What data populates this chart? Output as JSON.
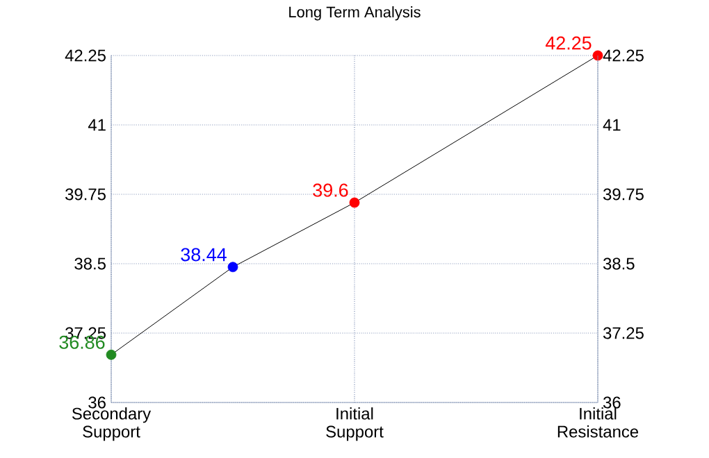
{
  "chart_data": {
    "type": "line",
    "title": "Long Term Analysis",
    "categories": [
      "Secondary Support",
      null,
      "Initial Support",
      null,
      "Initial Resistance"
    ],
    "ylim": [
      36,
      42.25
    ],
    "yticks": [
      36,
      37.25,
      38.5,
      39.75,
      41,
      42.25
    ],
    "y2lim": [
      36,
      42.25
    ],
    "y2ticks": [
      36,
      37.25,
      38.5,
      39.75,
      41,
      42.25
    ],
    "grid": true,
    "marker": "circle",
    "data_labels": true,
    "line_style": "solid",
    "series": [
      {
        "color": "#000000",
        "colors": [
          "#228b22",
          "#0000ff",
          "#ff0000",
          null,
          "#ff0000"
        ],
        "values": [
          36.86,
          38.44,
          39.6,
          null,
          42.25
        ]
      }
    ]
  }
}
